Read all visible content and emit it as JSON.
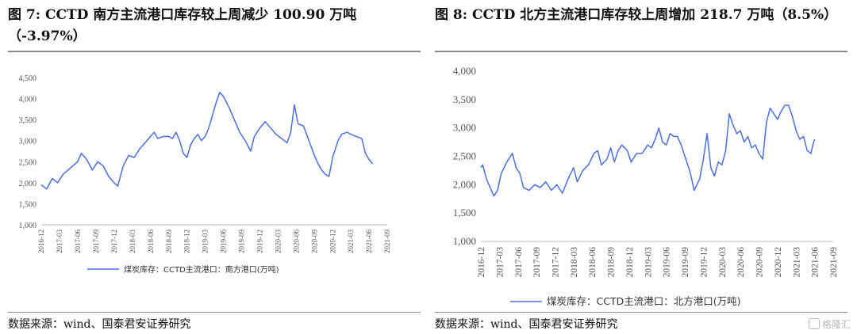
{
  "figures": [
    {
      "title": "图 7: CCTD 南方主流港口库存较上周减少 100.90 万吨（-3.97%）",
      "source": "数据来源：wind、国泰君安证券研究"
    },
    {
      "title": "图  8:    CCTD 北方主流港口库存较上周增加 218.7 万吨（8.5%）",
      "source": "数据来源：wind、国泰君安证券研究"
    }
  ],
  "watermark": "格隆汇",
  "chart_data": [
    {
      "type": "line",
      "x_labels": [
        "2016-12",
        "2017-03",
        "2017-06",
        "2017-09",
        "2017-12",
        "2018-03",
        "2018-06",
        "2018-09",
        "2018-12",
        "2019-03",
        "2019-06",
        "2019-09",
        "2019-12",
        "2020-03",
        "2020-06",
        "2020-09",
        "2020-12",
        "2021-03",
        "2021-06",
        "2021-09"
      ],
      "yticks": [
        "1,000",
        "1,500",
        "2,000",
        "2,500",
        "3,000",
        "3,500",
        "4,000",
        "4,500"
      ],
      "ylim": [
        1000,
        4500
      ],
      "grid": false,
      "legend": "bottom",
      "series": [
        {
          "name": "煤炭库存：CCTD主流港口：南方港口(万吨)",
          "color": "#4a6fe3",
          "points": [
            [
              0,
              1950
            ],
            [
              0.3,
              1850
            ],
            [
              0.6,
              2100
            ],
            [
              0.9,
              2000
            ],
            [
              1.2,
              2200
            ],
            [
              1.6,
              2350
            ],
            [
              2,
              2500
            ],
            [
              2.2,
              2700
            ],
            [
              2.5,
              2550
            ],
            [
              2.8,
              2300
            ],
            [
              3.1,
              2500
            ],
            [
              3.4,
              2400
            ],
            [
              3.7,
              2150
            ],
            [
              4,
              2000
            ],
            [
              4.2,
              1920
            ],
            [
              4.5,
              2400
            ],
            [
              4.8,
              2650
            ],
            [
              5.1,
              2600
            ],
            [
              5.4,
              2800
            ],
            [
              5.7,
              2950
            ],
            [
              6,
              3100
            ],
            [
              6.2,
              3200
            ],
            [
              6.4,
              3050
            ],
            [
              6.7,
              3100
            ],
            [
              7,
              3100
            ],
            [
              7.2,
              3050
            ],
            [
              7.4,
              3200
            ],
            [
              7.6,
              3000
            ],
            [
              7.8,
              2700
            ],
            [
              8,
              2600
            ],
            [
              8.2,
              2900
            ],
            [
              8.4,
              3050
            ],
            [
              8.6,
              3150
            ],
            [
              8.8,
              3000
            ],
            [
              9,
              3100
            ],
            [
              9.2,
              3300
            ],
            [
              9.4,
              3600
            ],
            [
              9.6,
              3900
            ],
            [
              9.8,
              4150
            ],
            [
              10,
              4050
            ],
            [
              10.3,
              3800
            ],
            [
              10.6,
              3500
            ],
            [
              10.9,
              3200
            ],
            [
              11.2,
              3000
            ],
            [
              11.5,
              2750
            ],
            [
              11.7,
              3100
            ],
            [
              12,
              3300
            ],
            [
              12.3,
              3450
            ],
            [
              12.6,
              3300
            ],
            [
              12.9,
              3150
            ],
            [
              13.2,
              3050
            ],
            [
              13.5,
              2950
            ],
            [
              13.7,
              3200
            ],
            [
              13.9,
              3850
            ],
            [
              14.1,
              3400
            ],
            [
              14.4,
              3350
            ],
            [
              14.7,
              3000
            ],
            [
              15,
              2650
            ],
            [
              15.2,
              2450
            ],
            [
              15.4,
              2300
            ],
            [
              15.6,
              2200
            ],
            [
              15.8,
              2150
            ],
            [
              16,
              2600
            ],
            [
              16.3,
              3000
            ],
            [
              16.5,
              3150
            ],
            [
              16.8,
              3200
            ],
            [
              17,
              3150
            ],
            [
              17.3,
              3100
            ],
            [
              17.6,
              3050
            ],
            [
              17.8,
              2700
            ],
            [
              18,
              2550
            ],
            [
              18.2,
              2450
            ]
          ]
        }
      ]
    },
    {
      "type": "line",
      "x_labels": [
        "2016-12",
        "2017-03",
        "2017-06",
        "2017-09",
        "2017-12",
        "2018-03",
        "2018-06",
        "2018-09",
        "2018-12",
        "2019-03",
        "2019-06",
        "2019-09",
        "2019-12",
        "2020-03",
        "2020-06",
        "2020-09",
        "2020-12",
        "2021-03",
        "2021-06",
        "2021-09"
      ],
      "yticks": [
        "1,000",
        "1,500",
        "2,000",
        "2,500",
        "3,000",
        "3,500",
        "4,000"
      ],
      "ylim": [
        1000,
        4000
      ],
      "grid": false,
      "legend": "bottom",
      "series": [
        {
          "name": "煤炭库存：CCTD主流港口：北方港口(万吨)",
          "color": "#4a6fe3",
          "points": [
            [
              0,
              2300
            ],
            [
              0.1,
              2350
            ],
            [
              0.3,
              2100
            ],
            [
              0.5,
              1950
            ],
            [
              0.7,
              1800
            ],
            [
              0.9,
              1900
            ],
            [
              1.1,
              2200
            ],
            [
              1.4,
              2400
            ],
            [
              1.7,
              2550
            ],
            [
              1.9,
              2300
            ],
            [
              2.1,
              2200
            ],
            [
              2.3,
              1950
            ],
            [
              2.6,
              1900
            ],
            [
              2.9,
              2000
            ],
            [
              3.2,
              1950
            ],
            [
              3.5,
              2050
            ],
            [
              3.8,
              1900
            ],
            [
              4.1,
              2000
            ],
            [
              4.4,
              1850
            ],
            [
              4.7,
              2100
            ],
            [
              5,
              2300
            ],
            [
              5.2,
              2050
            ],
            [
              5.5,
              2250
            ],
            [
              5.8,
              2350
            ],
            [
              6.1,
              2550
            ],
            [
              6.3,
              2600
            ],
            [
              6.5,
              2350
            ],
            [
              6.8,
              2450
            ],
            [
              7,
              2650
            ],
            [
              7.2,
              2400
            ],
            [
              7.4,
              2600
            ],
            [
              7.6,
              2700
            ],
            [
              7.9,
              2600
            ],
            [
              8.1,
              2400
            ],
            [
              8.4,
              2550
            ],
            [
              8.7,
              2550
            ],
            [
              9,
              2700
            ],
            [
              9.2,
              2650
            ],
            [
              9.4,
              2800
            ],
            [
              9.6,
              3000
            ],
            [
              9.8,
              2750
            ],
            [
              10,
              2700
            ],
            [
              10.2,
              2900
            ],
            [
              10.4,
              2850
            ],
            [
              10.6,
              2850
            ],
            [
              10.8,
              2700
            ],
            [
              11,
              2500
            ],
            [
              11.3,
              2200
            ],
            [
              11.5,
              1900
            ],
            [
              11.8,
              2100
            ],
            [
              12,
              2450
            ],
            [
              12.2,
              2900
            ],
            [
              12.4,
              2300
            ],
            [
              12.6,
              2150
            ],
            [
              12.8,
              2400
            ],
            [
              13,
              2350
            ],
            [
              13.2,
              2600
            ],
            [
              13.4,
              3250
            ],
            [
              13.6,
              3050
            ],
            [
              13.8,
              2900
            ],
            [
              14,
              2950
            ],
            [
              14.2,
              2750
            ],
            [
              14.4,
              2850
            ],
            [
              14.6,
              2650
            ],
            [
              14.8,
              2700
            ],
            [
              15,
              2550
            ],
            [
              15.2,
              2450
            ],
            [
              15.4,
              3100
            ],
            [
              15.6,
              3350
            ],
            [
              15.8,
              3250
            ],
            [
              16,
              3150
            ],
            [
              16.2,
              3300
            ],
            [
              16.4,
              3400
            ],
            [
              16.6,
              3400
            ],
            [
              16.8,
              3200
            ],
            [
              17,
              2950
            ],
            [
              17.2,
              2800
            ],
            [
              17.4,
              2850
            ],
            [
              17.6,
              2600
            ],
            [
              17.8,
              2550
            ],
            [
              17.9,
              2700
            ],
            [
              18,
              2800
            ]
          ]
        }
      ]
    }
  ]
}
